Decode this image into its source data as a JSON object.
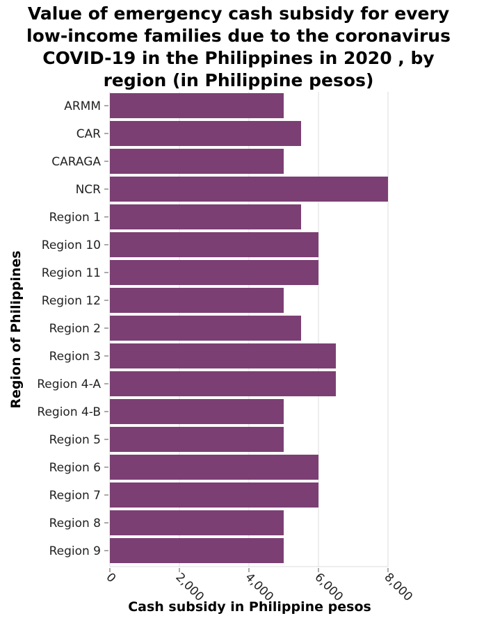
{
  "chart_data": {
    "type": "bar",
    "orientation": "horizontal",
    "title_lines": [
      "Value of emergency cash subsidy for every",
      "low-income families due to the coronavirus",
      "COVID-19 in the Philippines in 2020 , by",
      "region (in Philippine pesos)"
    ],
    "xlabel": "Cash subsidy in Philippine pesos",
    "ylabel": "Region of Philippines",
    "categories": [
      "ARMM",
      "CAR",
      "CARAGA",
      "NCR",
      "Region 1",
      "Region 10",
      "Region 11",
      "Region 12",
      "Region 2",
      "Region 3",
      "Region 4-A",
      "Region 4-B",
      "Region 5",
      "Region 6",
      "Region 7",
      "Region 8",
      "Region 9"
    ],
    "values": [
      5000,
      5500,
      5000,
      8000,
      5500,
      6000,
      6000,
      5000,
      5500,
      6500,
      6500,
      5000,
      5000,
      6000,
      6000,
      5000,
      5000
    ],
    "xlim": [
      0,
      8000
    ],
    "xticks": [
      0,
      2000,
      4000,
      6000,
      8000
    ],
    "xtick_labels": [
      "0",
      "2,000",
      "4,000",
      "6,000",
      "8,000"
    ],
    "grid": true,
    "bar_color": "#7b3f73"
  }
}
